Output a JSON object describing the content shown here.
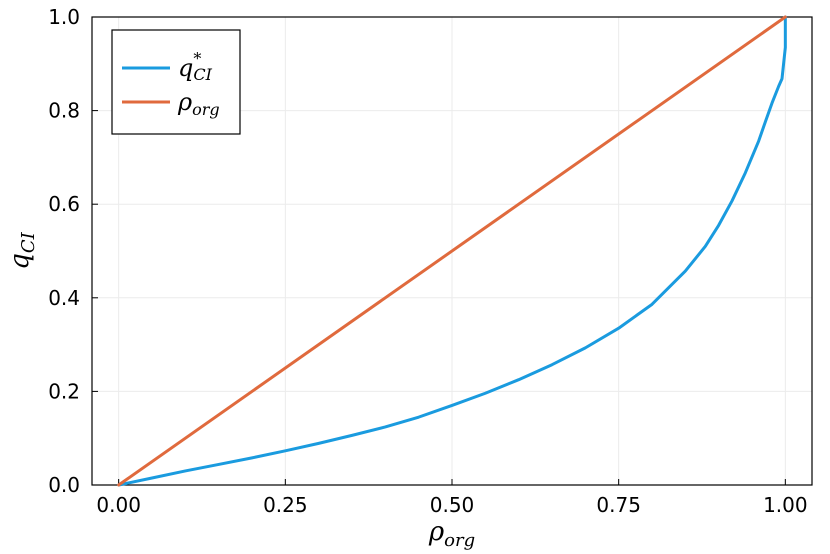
{
  "chart_data": {
    "type": "line",
    "xlim": [
      -0.04,
      1.04
    ],
    "ylim": [
      0.0,
      1.0
    ],
    "xticks": [
      0.0,
      0.25,
      0.5,
      0.75,
      1.0
    ],
    "xtick_labels": [
      "0.00",
      "0.25",
      "0.50",
      "0.75",
      "1.00"
    ],
    "yticks": [
      0.0,
      0.2,
      0.4,
      0.6,
      0.8,
      1.0
    ],
    "ytick_labels": [
      "0.0",
      "0.2",
      "0.4",
      "0.6",
      "0.8",
      "1.0"
    ],
    "xlabel": {
      "base": "ρ",
      "sub": "org"
    },
    "ylabel": {
      "base": "q",
      "sub": "CI"
    },
    "grid": true,
    "legend_position": "top-left",
    "series": [
      {
        "name": {
          "base": "q",
          "sup": "*",
          "sub": "CI"
        },
        "color": "#1a9bdf",
        "x": [
          0.0,
          0.05,
          0.1,
          0.15,
          0.2,
          0.25,
          0.3,
          0.35,
          0.4,
          0.45,
          0.5,
          0.55,
          0.6,
          0.65,
          0.7,
          0.75,
          0.8,
          0.85,
          0.88,
          0.9,
          0.92,
          0.94,
          0.96,
          0.97,
          0.98,
          0.99,
          0.995,
          1.0,
          1.0
        ],
        "y": [
          0.0,
          0.015,
          0.03,
          0.044,
          0.058,
          0.073,
          0.089,
          0.106,
          0.124,
          0.145,
          0.17,
          0.196,
          0.225,
          0.257,
          0.293,
          0.335,
          0.386,
          0.457,
          0.51,
          0.555,
          0.607,
          0.667,
          0.735,
          0.776,
          0.816,
          0.852,
          0.868,
          0.935,
          1.0
        ]
      },
      {
        "name": {
          "base": "ρ",
          "sub": "org"
        },
        "color": "#e06a3d",
        "x": [
          0.0,
          1.0
        ],
        "y": [
          0.0,
          1.0
        ]
      }
    ]
  }
}
